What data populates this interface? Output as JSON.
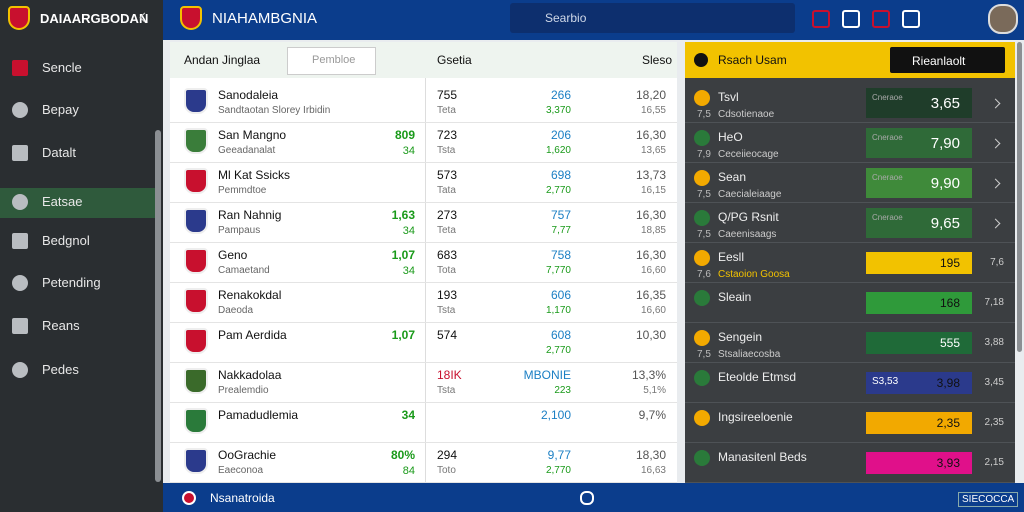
{
  "sidebar": {
    "brand": "DAIAARGBODAN",
    "items": [
      "Sencle",
      "Bepay",
      "Datalt",
      "Eatsae",
      "Bedgnol",
      "Petending",
      "Reans",
      "Pedes"
    ],
    "active": 3
  },
  "topbar": {
    "brand": "NIAHAMBGNIA",
    "search": "Searbio"
  },
  "main": {
    "title": "Andan Jinglaa",
    "search": "Pembloe",
    "col1": "Gsetia",
    "col2": "Sleso",
    "rows": [
      {
        "name": "Sanodaleia",
        "sub": "Sandtaotan Slorey Irbidin",
        "b": "755",
        "b_sub": "Teta",
        "c": "266",
        "c_sub": "3,370",
        "d": "18,20",
        "d_sub": "16,55"
      },
      {
        "name": "San Mangno",
        "sub": "Geeadanalat",
        "a": "809",
        "a_sub": "34",
        "b": "723",
        "b_sub": "Tsta",
        "c": "206",
        "c_sub": "1,620",
        "d": "16,30",
        "d_sub": "13,65"
      },
      {
        "name": "Ml Kat Ssicks",
        "sub": "Pemmdtoe",
        "b": "573",
        "b_sub": "Tata",
        "c": "698",
        "c_sub": "2,770",
        "d": "13,73",
        "d_sub": "16,15"
      },
      {
        "name": "Ran Nahnig",
        "sub": "Pampaus",
        "a": "1,63",
        "a_sub": "34",
        "b": "273",
        "b_sub": "Teta",
        "c": "757",
        "c_sub": "7,77",
        "d": "16,30",
        "d_sub": "18,85"
      },
      {
        "name": "Geno",
        "sub": "Camaetand",
        "a": "1,07",
        "a_sub": "34",
        "b": "683",
        "b_sub": "Tota",
        "c": "758",
        "c_sub": "7,770",
        "d": "16,30",
        "d_sub": "16,60"
      },
      {
        "name": "Renakokdal",
        "sub": "Daeoda",
        "b": "193",
        "b_sub": "Tsta",
        "c": "606",
        "c_sub": "1,170",
        "d": "16,35",
        "d_sub": "16,60"
      },
      {
        "name": "Pam Aerdida",
        "a": "1,07",
        "b": "574",
        "c": "608",
        "c_sub": "2,770",
        "d": "10,30"
      },
      {
        "name": "Nakkadolaa",
        "sub": "Prealemdio",
        "b": "18IK",
        "b_sub": "Tsta",
        "c": "MBONIE",
        "c_sub": "223",
        "d": "13,3%",
        "d_sub": "5,1%"
      },
      {
        "name": "Pamadudlemia",
        "a": "34",
        "c": "2,100",
        "d": "9,7%"
      },
      {
        "name": "OoGrachie",
        "sub": "Eaeconoa",
        "a": "80%",
        "a_sub": "84",
        "b": "294",
        "b_sub": "Toto",
        "c": "9,77",
        "c_sub": "2,770",
        "d": "18,30",
        "d_sub": "16,63"
      }
    ]
  },
  "side": {
    "title": "Rsach Usam",
    "button": "Rieanlaolt",
    "rows": [
      {
        "name": "Tsvl",
        "code": "7,5",
        "sub": "Cdsotienaoe",
        "tag": "Cneraoe",
        "value": "3,65"
      },
      {
        "name": "HeO",
        "code": "7,9",
        "sub": "Ceceiieocage",
        "tag": "Cneraoe",
        "value": "7,90"
      },
      {
        "name": "Sean",
        "code": "7,5",
        "sub": "Caecialeiaage",
        "tag": "Cneraoe",
        "value": "9,90"
      },
      {
        "name": "Q/PG Rsnit",
        "code": "7,5",
        "sub": "Caeenisaags",
        "tag": "Cneraoe",
        "value": "9,65"
      },
      {
        "name": "Eesll",
        "code": "7,6",
        "sub": "Cstaoion Goosa",
        "value": "195",
        "end": "7,6"
      },
      {
        "name": "Sleain",
        "value": "168",
        "end": "7,18"
      },
      {
        "name": "Sengein",
        "code": "7,5",
        "sub": "Stsaliaecosba",
        "value": "555",
        "end": "3,88"
      },
      {
        "name": "Eteolde Etmsd",
        "tag": "S3,53",
        "value": "3,98",
        "end": "3,45"
      },
      {
        "name": "Ingsireeloenie",
        "value": "2,35",
        "end": "2,35"
      },
      {
        "name": "Manasitenl Beds",
        "value": "3,93",
        "end": "2,15"
      }
    ]
  },
  "footer": {
    "brand": "Nsanatroida",
    "action": "SIECOCCA"
  }
}
